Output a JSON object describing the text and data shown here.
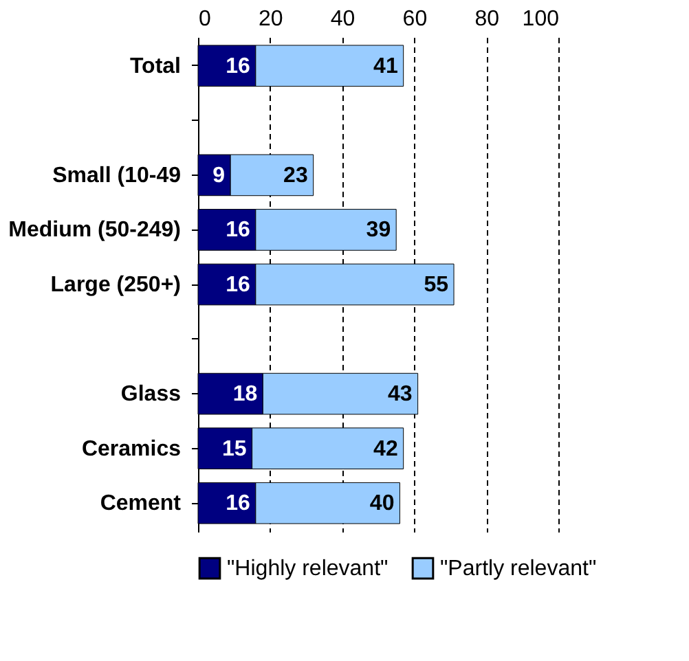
{
  "chart_data": {
    "type": "bar",
    "orientation": "horizontal",
    "stacked": true,
    "categories": [
      "Total",
      null,
      "Small (10-49",
      "Medium (50-249)",
      "Large (250+)",
      null,
      "Glass",
      "Ceramics",
      "Cement"
    ],
    "series": [
      {
        "name": "\"Highly relevant\"",
        "color": "#000080",
        "values": [
          16,
          null,
          9,
          16,
          16,
          null,
          18,
          15,
          16
        ]
      },
      {
        "name": "\"Partly relevant\"",
        "color": "#99ccff",
        "values": [
          41,
          null,
          23,
          39,
          55,
          null,
          43,
          42,
          40
        ]
      }
    ],
    "xlim": [
      0,
      100
    ],
    "xticks": [
      0,
      20,
      40,
      60,
      80,
      100
    ],
    "grid": "x",
    "legend": "bottom",
    "data_labels": true
  }
}
